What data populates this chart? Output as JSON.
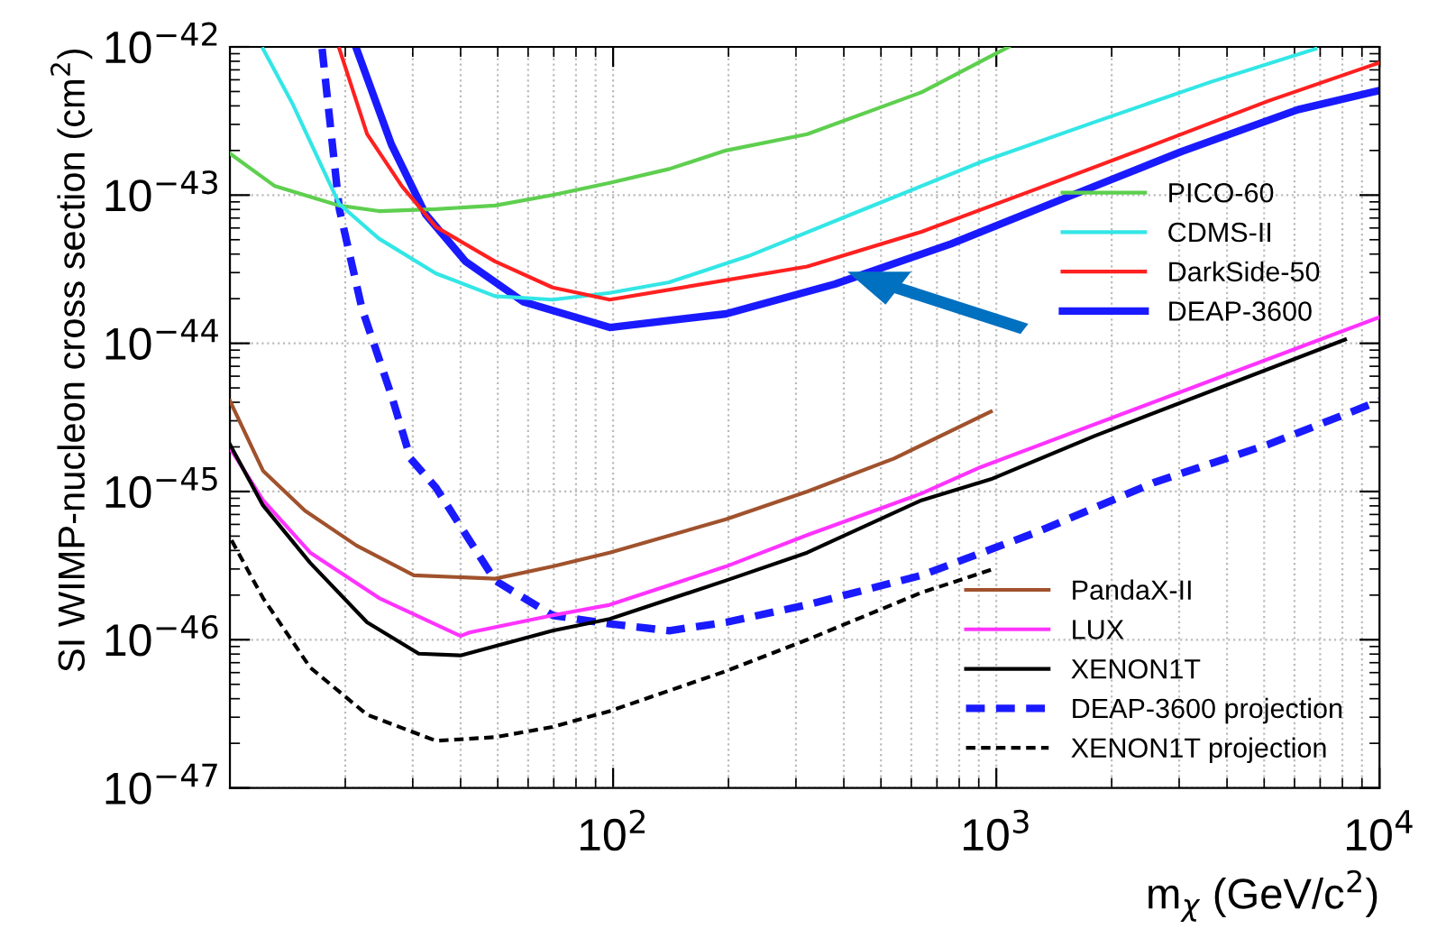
{
  "chart_data": {
    "type": "line",
    "xlabel": "m$_{χ}$ (GeV/c$^{2}$)",
    "ylabel": "SI WIMP-nucleon cross section (cm$^{2}$)",
    "log": "xy",
    "grid": true,
    "legend": "right",
    "xlim": [
      10,
      10000
    ],
    "ylim": [
      1e-47,
      1e-42
    ],
    "xticks": [
      {
        "value": 100,
        "label": "10$^{2}$"
      },
      {
        "value": 1000,
        "label": "10$^{3}$"
      },
      {
        "value": 10000,
        "label": "10$^{4}$"
      }
    ],
    "yticks": [
      {
        "value": 1e-47,
        "label": "10$^{−47}$"
      },
      {
        "value": 1e-46,
        "label": "10$^{−46}$"
      },
      {
        "value": 1e-45,
        "label": "10$^{−45}$"
      },
      {
        "value": 1e-44,
        "label": "10$^{−44}$"
      },
      {
        "value": 1e-43,
        "label": "10$^{−43}$"
      },
      {
        "value": 1e-42,
        "label": "10$^{−42}$"
      }
    ],
    "series": [
      {
        "name": "PICO-60",
        "color": "#5ecf4f",
        "line_style": "solid",
        "x": [
          10,
          13.1,
          19.3,
          24.5,
          34.5,
          49.2,
          69.5,
          98,
          140,
          197,
          321,
          638,
          1076
        ],
        "values": [
          1.91e-43,
          1.15e-43,
          8.5e-44,
          7.8e-44,
          8.05e-44,
          8.5e-44,
          1e-43,
          1.21e-43,
          1.5e-43,
          2e-43,
          2.58e-43,
          4.94e-43,
          1e-42
        ]
      },
      {
        "name": "CDMS-II",
        "color": "#33e6e6",
        "line_style": "solid",
        "x": [
          12.2,
          14.6,
          19.3,
          24.5,
          34.5,
          49.2,
          69.5,
          98,
          140,
          225,
          453,
          910,
          1811,
          3640,
          6810
        ],
        "values": [
          9.7e-43,
          4.09e-43,
          8.7e-44,
          5.08e-44,
          2.96e-44,
          2.08e-44,
          1.97e-44,
          2.19e-44,
          2.58e-44,
          3.87e-44,
          8.05e-44,
          1.67e-43,
          3.12e-43,
          5.82e-43,
          9.7e-43
        ]
      },
      {
        "name": "DarkSide-50",
        "color": "#ff2020",
        "line_style": "solid",
        "x": [
          19.3,
          22.8,
          28.1,
          34.5,
          49.2,
          69.5,
          98,
          321,
          638,
          1285,
          2580,
          5130,
          10000
        ],
        "values": [
          9.7e-43,
          2.58e-43,
          1.15e-43,
          6.1e-44,
          3.57e-44,
          2.38e-44,
          1.97e-44,
          3.3e-44,
          5.66e-44,
          1.11e-43,
          2.19e-43,
          4.32e-43,
          7.83e-43
        ]
      },
      {
        "name": "DEAP-3600",
        "color": "#1a1aff",
        "line_style": "solid",
        "x": [
          21.4,
          26.4,
          32.4,
          41.2,
          58.2,
          98,
          197,
          379,
          762,
          1533,
          3050,
          6120,
          10000
        ],
        "values": [
          9.7e-43,
          2.19e-43,
          7.43e-44,
          3.57e-44,
          1.91e-44,
          1.28e-44,
          1.58e-44,
          2.51e-44,
          4.69e-44,
          9.7e-44,
          1.97e-43,
          3.77e-43,
          5.08e-43
        ]
      },
      {
        "name": "PandaX-II",
        "color": "#a0522d",
        "line_style": "solid",
        "x": [
          10,
          12.2,
          15.7,
          21.4,
          30.2,
          49.2,
          69.5,
          98,
          197,
          321,
          541,
          968
        ],
        "values": [
          4.09e-45,
          1.38e-45,
          7.43e-46,
          4.32e-46,
          2.72e-46,
          2.58e-46,
          3.12e-46,
          3.87e-46,
          6.49e-46,
          1e-45,
          1.67e-45,
          3.47e-45
        ]
      },
      {
        "name": "LUX",
        "color": "#ff33ff",
        "line_style": "solid",
        "x": [
          10,
          12.2,
          16.2,
          24.5,
          40,
          42.2,
          69.5,
          98,
          197,
          321,
          638,
          910,
          10000
        ],
        "values": [
          1.97e-45,
          8.73e-46,
          3.87e-46,
          1.91e-46,
          1.06e-46,
          1.12e-46,
          1.46e-46,
          1.72e-46,
          3.12e-46,
          5.08e-46,
          9.7e-46,
          1.46e-45,
          1.5e-44
        ]
      },
      {
        "name": "XENON1T",
        "color": "#000000",
        "line_style": "solid",
        "x": [
          10,
          12.2,
          16.2,
          22.8,
          31.1,
          40,
          69.5,
          98,
          197,
          321,
          638,
          968,
          1811,
          8130
        ],
        "values": [
          2.08e-45,
          8.05e-46,
          3.3e-46,
          1.31e-46,
          8.05e-47,
          7.83e-47,
          1.15e-46,
          1.38e-46,
          2.51e-46,
          3.87e-46,
          8.73e-46,
          1.21e-45,
          2.38e-45,
          1.06e-44
        ]
      },
      {
        "name": "DEAP-3600 projection",
        "color": "#1a1aff",
        "line_style": "dashed",
        "x": [
          17.4,
          19.3,
          22.1,
          26.4,
          29.6,
          34.5,
          49.2,
          69.5,
          98,
          140,
          197,
          321,
          638,
          1285,
          2580,
          5130,
          10000
        ],
        "values": [
          9.7e-43,
          8.05e-44,
          1.72e-44,
          4.44e-45,
          1.67e-45,
          1.06e-45,
          2.51e-46,
          1.46e-46,
          1.28e-46,
          1.15e-46,
          1.31e-46,
          1.72e-46,
          2.72e-46,
          5.36e-46,
          1.15e-45,
          2.08e-45,
          4.09e-45
        ]
      },
      {
        "name": "XENON1T projection",
        "color": "#000000",
        "line_style": "dashed",
        "x": [
          10.1,
          12.2,
          16.2,
          22.8,
          34.5,
          49.2,
          69.5,
          98,
          197,
          321,
          638,
          968
        ],
        "values": [
          4.69e-46,
          1.91e-46,
          6.49e-47,
          3.12e-47,
          2.08e-47,
          2.2e-47,
          2.58e-47,
          3.3e-47,
          6.14e-47,
          1e-46,
          2.08e-46,
          2.96e-46
        ]
      }
    ]
  }
}
